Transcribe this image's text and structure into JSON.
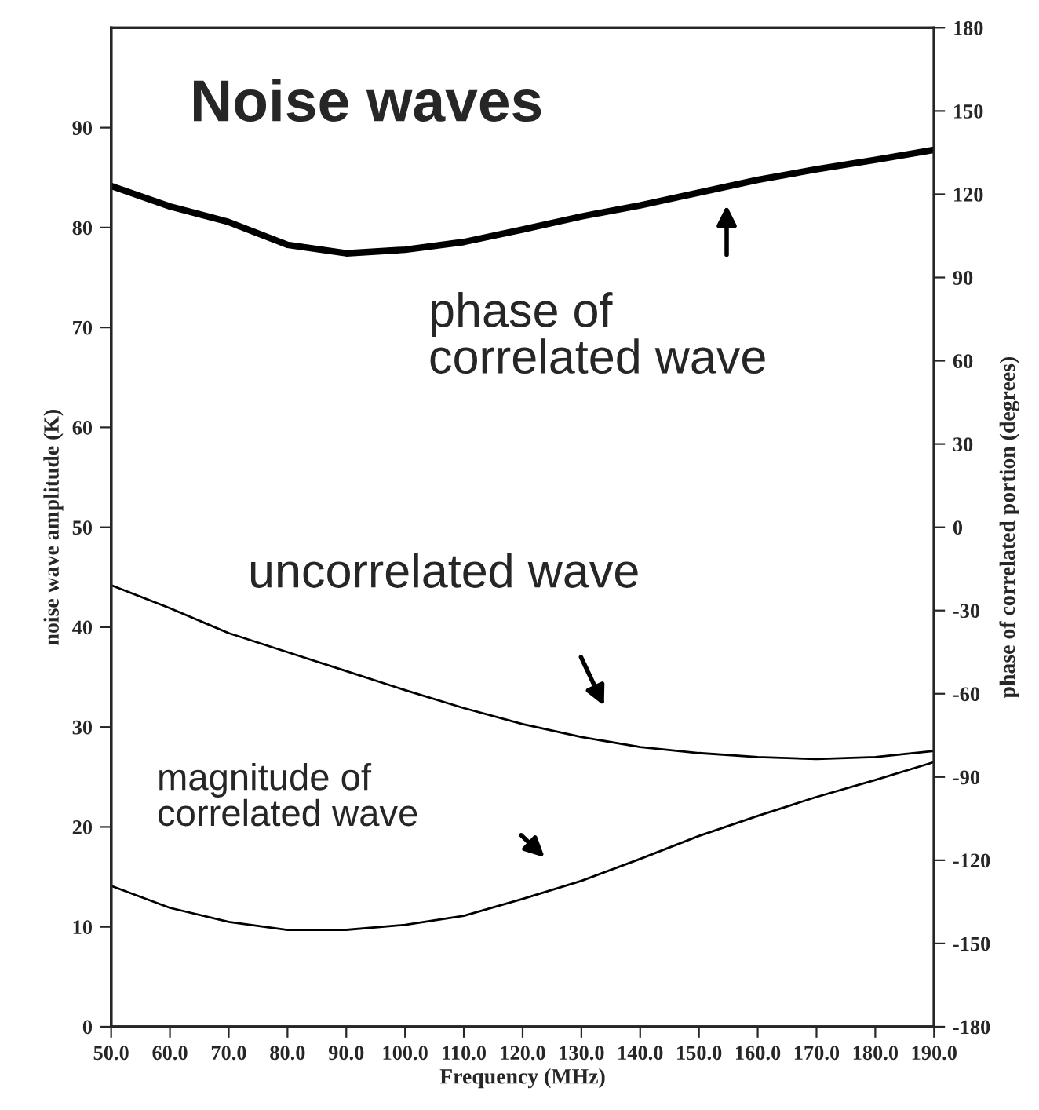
{
  "chart_data": {
    "type": "line",
    "title": "Noise waves",
    "xlabel": "Frequency (MHz)",
    "ylabel": "noise wave amplitude (K)",
    "y2label": "phase of correlated portion (degrees)",
    "x": [
      50,
      60,
      70,
      80,
      90,
      100,
      110,
      120,
      130,
      140,
      150,
      160,
      170,
      180,
      190
    ],
    "series": [
      {
        "color": "#000000",
        "axis": "y2",
        "values": [
          123,
          115.6,
          110,
          101.8,
          98.7,
          100,
          102.8,
          107.3,
          112,
          116,
          120.6,
          125.2,
          129,
          132.4,
          136
        ]
      },
      {
        "color": "#000000",
        "values": [
          44.2,
          41.9,
          39.4,
          37.5,
          35.6,
          33.7,
          31.9,
          30.3,
          29.0,
          28.0,
          27.4,
          27.0,
          26.8,
          27.0,
          27.6
        ]
      },
      {
        "color": "#000000",
        "values": [
          14.1,
          11.9,
          10.5,
          9.7,
          9.7,
          10.2,
          11.1,
          12.8,
          14.6,
          16.8,
          19.1,
          21.1,
          23.0,
          24.7,
          26.5
        ]
      }
    ],
    "xlim": [
      50,
      190
    ],
    "xticks": [
      {
        "value": 50,
        "label": "50.0"
      },
      {
        "value": 60,
        "label": "60.0"
      },
      {
        "value": 70,
        "label": "70.0"
      },
      {
        "value": 80,
        "label": "80.0"
      },
      {
        "value": 90,
        "label": "90.0"
      },
      {
        "value": 100,
        "label": "100.0"
      },
      {
        "value": 110,
        "label": "110.0"
      },
      {
        "value": 120,
        "label": "120.0"
      },
      {
        "value": 130,
        "label": "130.0"
      },
      {
        "value": 140,
        "label": "140.0"
      },
      {
        "value": 150,
        "label": "150.0"
      },
      {
        "value": 160,
        "label": "160.0"
      },
      {
        "value": 170,
        "label": "170.0"
      },
      {
        "value": 180,
        "label": "180.0"
      },
      {
        "value": 190,
        "label": "190.0"
      }
    ],
    "ylim": [
      0,
      100
    ],
    "yticks": [
      0,
      10,
      20,
      30,
      40,
      50,
      60,
      70,
      80,
      90
    ],
    "y2lim": [
      -180,
      180
    ],
    "y2ticks": [
      -180,
      -150,
      -120,
      -90,
      -60,
      -30,
      0,
      30,
      60,
      90,
      120,
      150,
      180
    ],
    "annotations": [
      "phase of\ncorrelated wave",
      "uncorrelated wave",
      "magnitude of\ncorrelated wave"
    ],
    "grid": false,
    "legend": false,
    "marker": "none",
    "line_style": "solid"
  }
}
